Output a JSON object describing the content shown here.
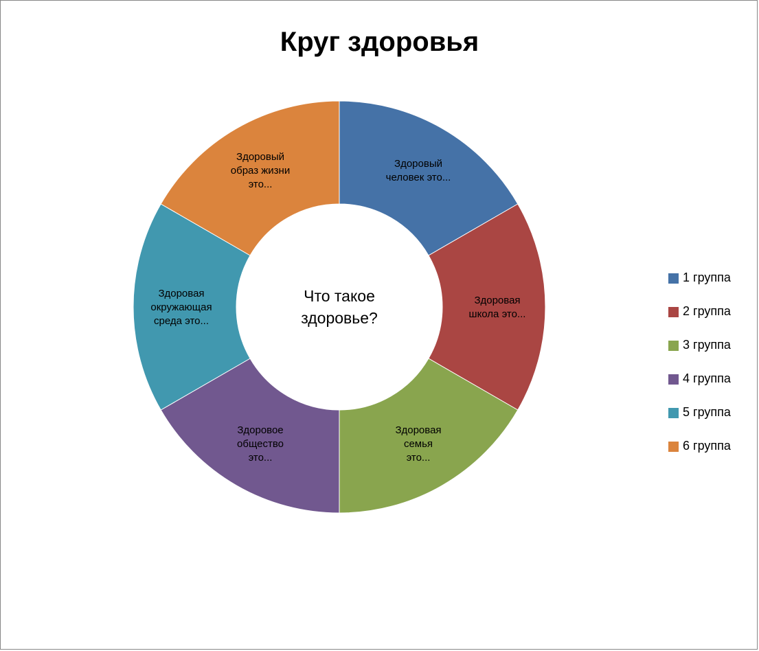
{
  "chart_data": {
    "type": "pie",
    "variant": "doughnut",
    "title": "Круг здоровья",
    "center_text": [
      "Что такое",
      "здоровье?"
    ],
    "legend_position": "right",
    "series": [
      {
        "values": [
          1,
          1,
          1,
          1,
          1,
          1
        ]
      }
    ],
    "categories": [
      "1 группа",
      "2 группа",
      "3 группа",
      "4 группа",
      "5 группа",
      "6 группа"
    ],
    "segments": [
      {
        "category": "1 группа",
        "value": 1,
        "color": "#4572a7",
        "label_lines": [
          "Здоровый",
          "человек это..."
        ]
      },
      {
        "category": "2 группа",
        "value": 1,
        "color": "#aa4643",
        "label_lines": [
          "Здоровая",
          "школа это..."
        ]
      },
      {
        "category": "3 группа",
        "value": 1,
        "color": "#89a54e",
        "label_lines": [
          "Здоровая",
          "семья",
          "это..."
        ]
      },
      {
        "category": "4 группа",
        "value": 1,
        "color": "#71588f",
        "label_lines": [
          "Здоровое",
          "общество",
          "это..."
        ]
      },
      {
        "category": "5 группа",
        "value": 1,
        "color": "#4198af",
        "label_lines": [
          "Здоровая",
          "окружающая",
          "среда это..."
        ]
      },
      {
        "category": "6 группа",
        "value": 1,
        "color": "#db843d",
        "label_lines": [
          "Здоровый",
          "образ жизни",
          "это..."
        ]
      }
    ]
  }
}
